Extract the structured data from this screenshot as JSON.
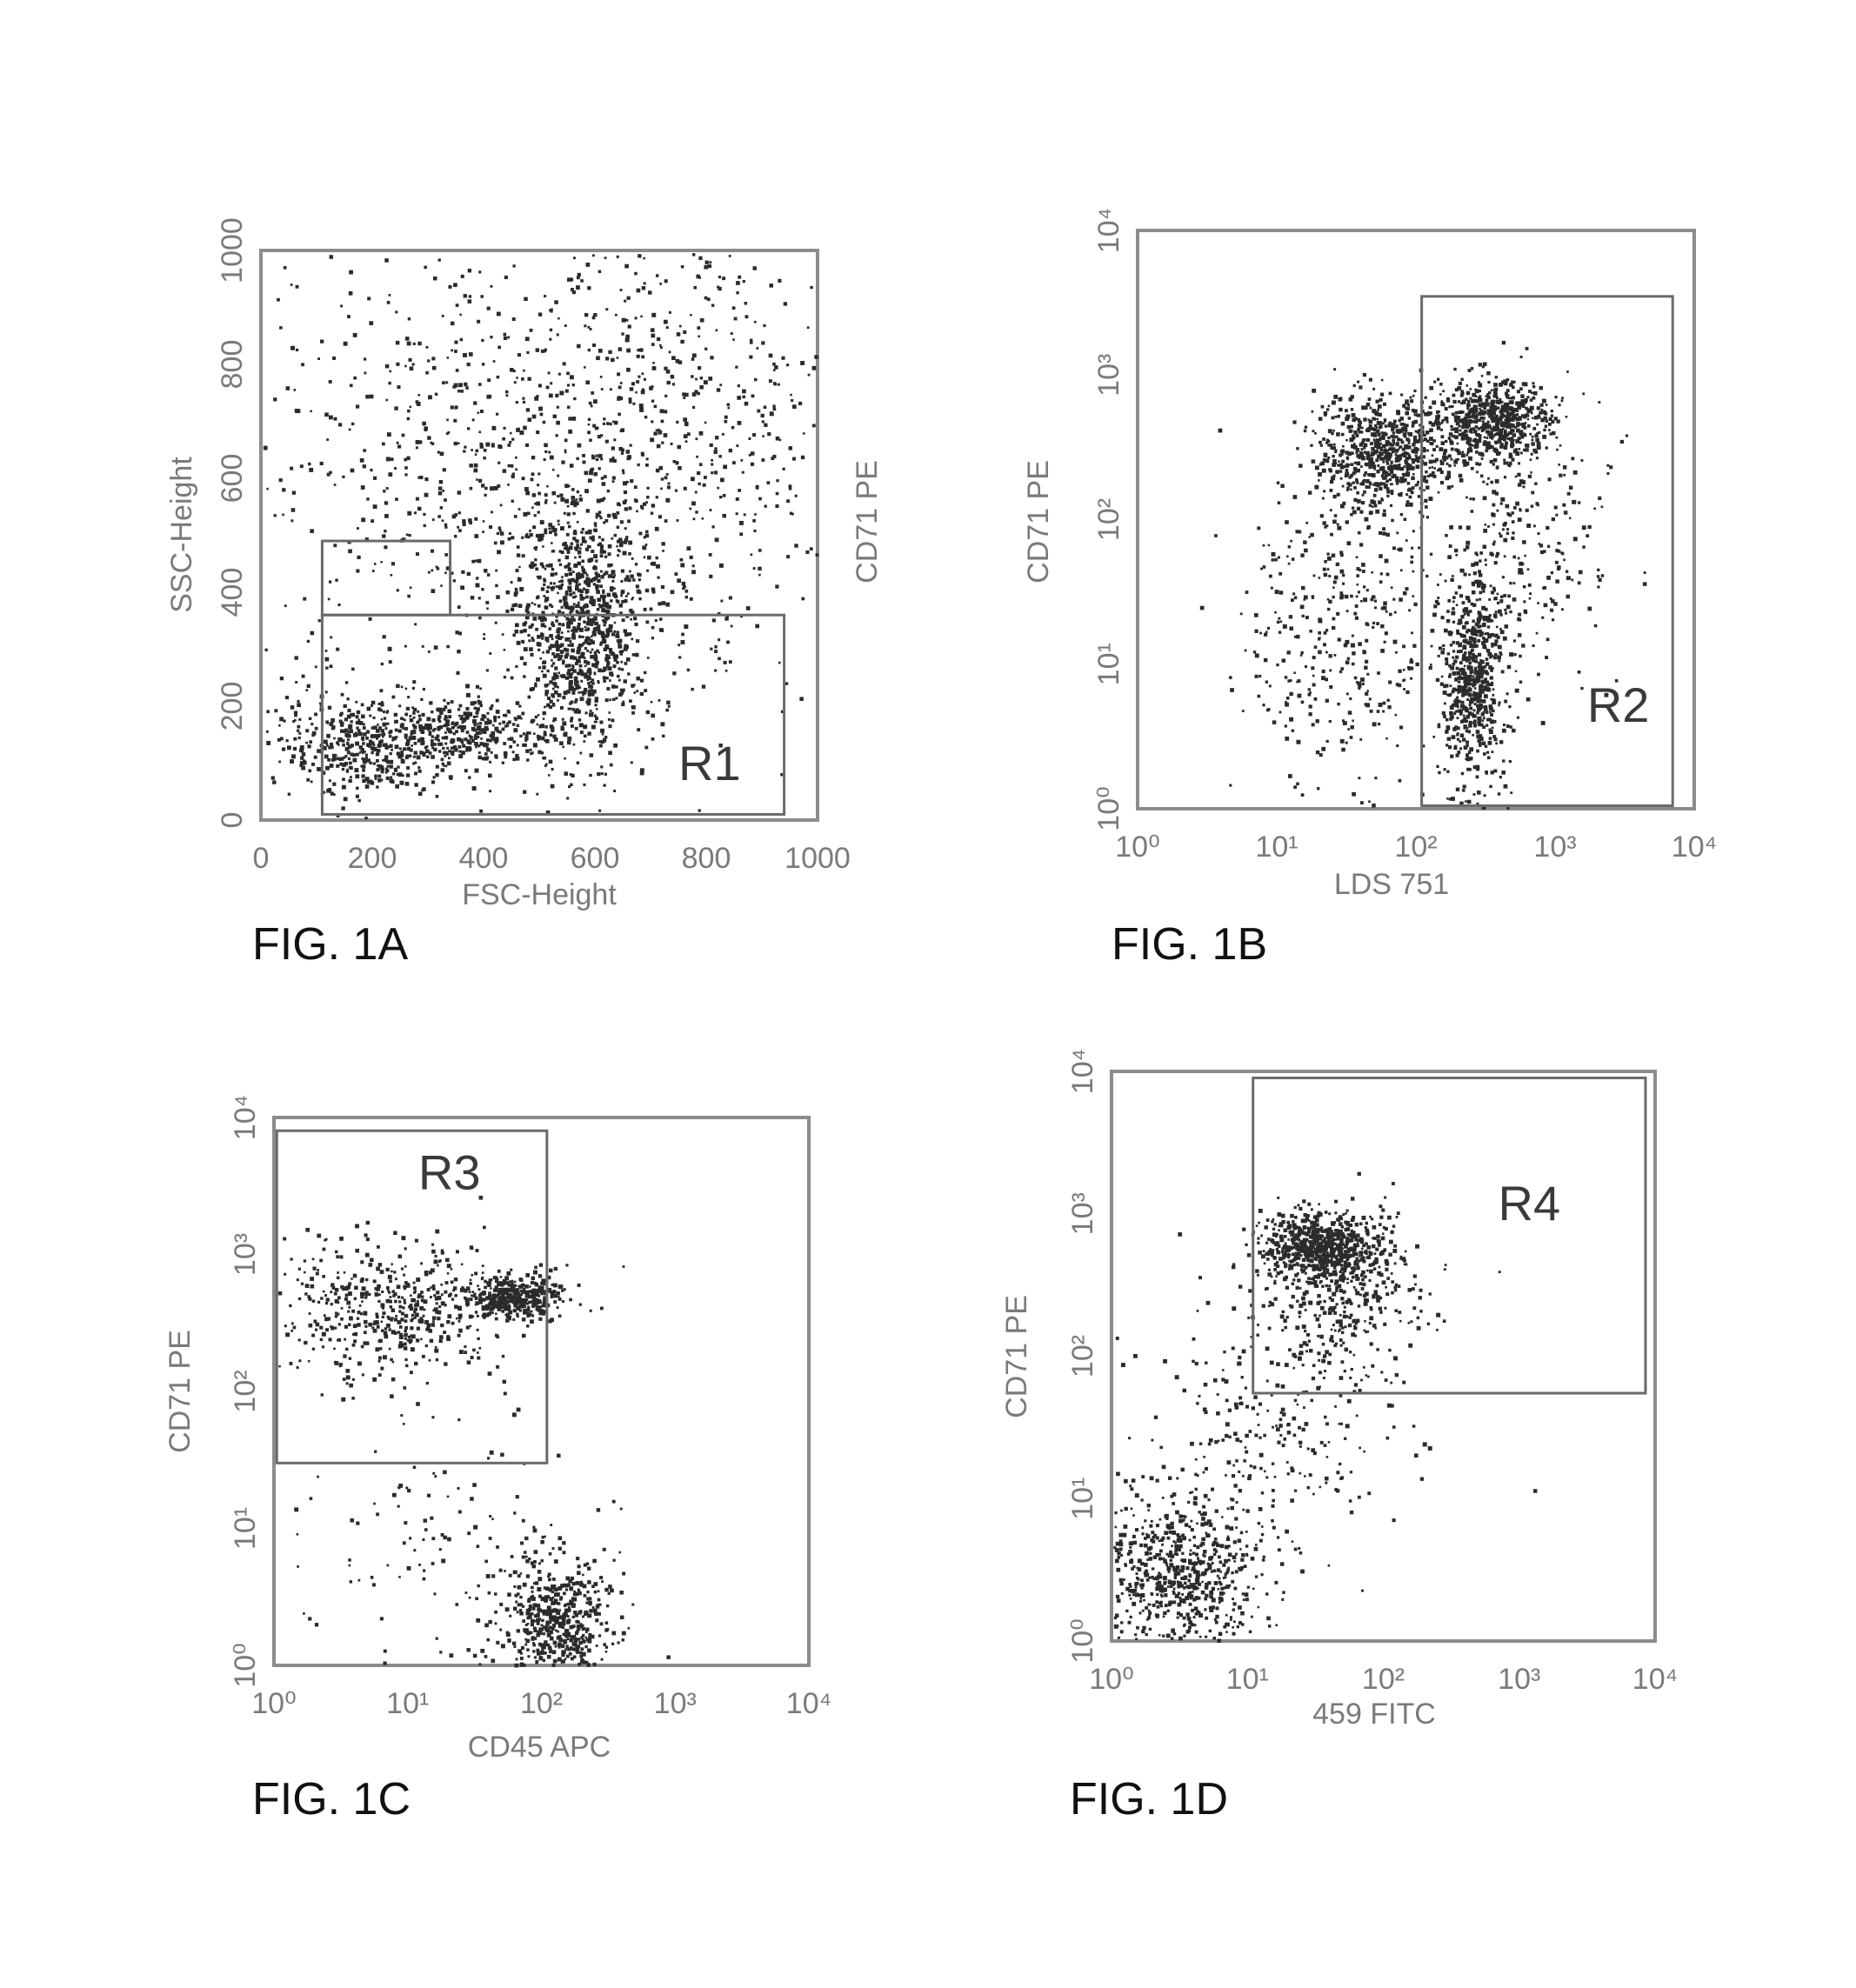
{
  "chart_data": [
    {
      "type": "scatter",
      "figure_label": "FIG. 1A",
      "xlabel": "FSC-Height",
      "ylabel": "SSC-Height",
      "right_label": "CD71 PE",
      "x_scale": "linear",
      "y_scale": "linear",
      "xlim": [
        0,
        1000
      ],
      "ylim": [
        0,
        1000
      ],
      "x_ticks": [
        "0",
        "200",
        "400",
        "600",
        "800",
        "1000"
      ],
      "y_ticks": [
        "0",
        "200",
        "400",
        "600",
        "800",
        "1000"
      ],
      "gates": [
        {
          "name": "R1",
          "x": [
            110,
            940
          ],
          "y": [
            10,
            360
          ],
          "label_pos": [
            750,
            70
          ]
        },
        {
          "name": "",
          "x": [
            110,
            340
          ],
          "y": [
            360,
            490
          ]
        }
      ],
      "clusters": [
        {
          "cx": 570,
          "cy": 330,
          "sx": 55,
          "sy": 110,
          "n": 900
        },
        {
          "cx": 180,
          "cy": 130,
          "sx": 80,
          "sy": 40,
          "n": 450
        },
        {
          "cx": 380,
          "cy": 160,
          "sx": 70,
          "sy": 30,
          "n": 300
        },
        {
          "cx": 480,
          "cy": 550,
          "sx": 260,
          "sy": 230,
          "n": 900
        },
        {
          "cx": 700,
          "cy": 750,
          "sx": 240,
          "sy": 180,
          "n": 500
        }
      ]
    },
    {
      "type": "scatter",
      "figure_label": "FIG. 1B",
      "xlabel": "LDS 751",
      "ylabel": "CD71 PE",
      "x_scale": "log",
      "y_scale": "log",
      "xlim": [
        1,
        10000
      ],
      "ylim": [
        1,
        10000
      ],
      "x_ticks": [
        "10⁰",
        "10¹",
        "10²",
        "10³",
        "10⁴"
      ],
      "y_ticks": [
        "10⁰",
        "10¹",
        "10²",
        "10³",
        "10⁴"
      ],
      "gates": [
        {
          "name": "R2",
          "x": [
            110,
            7000
          ],
          "y": [
            1.05,
            3500
          ],
          "label_pos": [
            1700,
            4
          ]
        }
      ],
      "clusters": [
        {
          "cx": 60,
          "cy": 300,
          "sx": 0.25,
          "sy": 0.2,
          "n": 700
        },
        {
          "cx": 350,
          "cy": 500,
          "sx": 0.2,
          "sy": 0.15,
          "n": 600
        },
        {
          "cx": 250,
          "cy": 8,
          "sx": 0.12,
          "sy": 0.35,
          "n": 600
        },
        {
          "cx": 30,
          "cy": 20,
          "sx": 0.35,
          "sy": 0.55,
          "n": 400
        },
        {
          "cx": 600,
          "cy": 60,
          "sx": 0.3,
          "sy": 0.5,
          "n": 250
        }
      ]
    },
    {
      "type": "scatter",
      "figure_label": "FIG. 1C",
      "xlabel": "CD45 APC",
      "ylabel": "CD71 PE",
      "x_scale": "log",
      "y_scale": "log",
      "xlim": [
        1,
        10000
      ],
      "ylim": [
        1,
        10000
      ],
      "x_ticks": [
        "10⁰",
        "10¹",
        "10²",
        "10³",
        "10⁴"
      ],
      "y_ticks": [
        "10⁰",
        "10¹",
        "10²",
        "10³",
        "10⁴"
      ],
      "gates": [
        {
          "name": "R3",
          "x": [
            1.05,
            110
          ],
          "y": [
            30,
            8000
          ],
          "label_pos": [
            12,
            3000
          ]
        }
      ],
      "clusters": [
        {
          "cx": 60,
          "cy": 500,
          "sx": 0.2,
          "sy": 0.08,
          "n": 400
        },
        {
          "cx": 8,
          "cy": 400,
          "sx": 0.45,
          "sy": 0.25,
          "n": 500
        },
        {
          "cx": 120,
          "cy": 2,
          "sx": 0.2,
          "sy": 0.25,
          "n": 550
        },
        {
          "cx": 20,
          "cy": 8,
          "sx": 0.5,
          "sy": 0.5,
          "n": 120
        }
      ]
    },
    {
      "type": "scatter",
      "figure_label": "FIG. 1D",
      "xlabel": "459 FITC",
      "ylabel": "CD71 PE",
      "x_scale": "log",
      "y_scale": "log",
      "xlim": [
        1,
        10000
      ],
      "ylim": [
        1,
        10000
      ],
      "x_ticks": [
        "10⁰",
        "10¹",
        "10²",
        "10³",
        "10⁴"
      ],
      "y_ticks": [
        "10⁰",
        "10¹",
        "10²",
        "10³",
        "10⁴"
      ],
      "gates": [
        {
          "name": "R4",
          "x": [
            11,
            8500
          ],
          "y": [
            55,
            9000
          ],
          "label_pos": [
            700,
            900
          ]
        }
      ],
      "clusters": [
        {
          "cx": 35,
          "cy": 600,
          "sx": 0.22,
          "sy": 0.12,
          "n": 700
        },
        {
          "cx": 50,
          "cy": 250,
          "sx": 0.3,
          "sy": 0.25,
          "n": 300
        },
        {
          "cx": 3,
          "cy": 3,
          "sx": 0.3,
          "sy": 0.3,
          "n": 700
        },
        {
          "cx": 15,
          "cy": 30,
          "sx": 0.45,
          "sy": 0.45,
          "n": 250
        }
      ]
    }
  ]
}
